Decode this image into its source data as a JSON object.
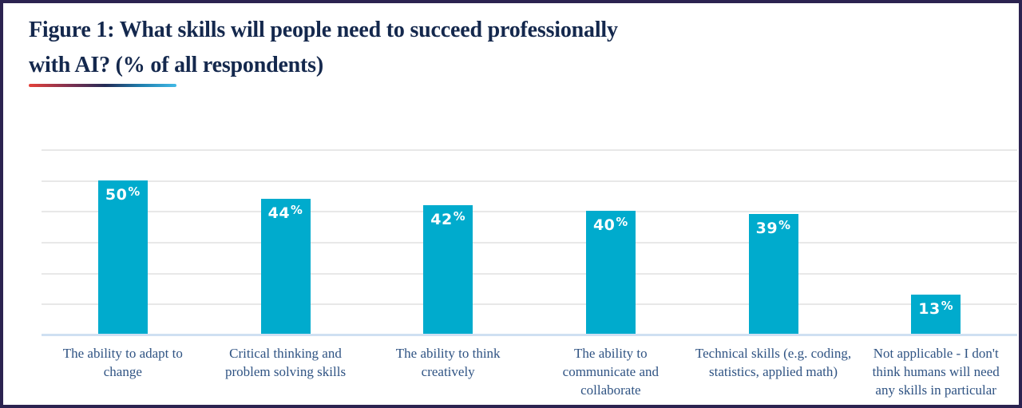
{
  "figure": {
    "title_line1": "Figure 1: What skills will people need to succeed professionally",
    "title_line2": "with AI? (% of all respondents)"
  },
  "chart_data": {
    "type": "bar",
    "title": "Figure 1: What skills will people need to succeed professionally with AI? (% of all respondents)",
    "categories": [
      "The ability to adapt to change",
      "Critical thinking and problem solving skills",
      "The ability to think creatively",
      "The ability to communicate and collaborate",
      "Technical skills (e.g. coding, statistics, applied math)",
      "Not applicable - I don't think humans will need any skills in particular"
    ],
    "values": [
      50,
      44,
      42,
      40,
      39,
      13
    ],
    "value_labels": [
      "50%",
      "44%",
      "42%",
      "40%",
      "39%",
      "13%"
    ],
    "xlabel": "",
    "ylabel": "",
    "ylim": [
      0,
      60
    ],
    "gridline_step": 10,
    "grid": true,
    "legend": false,
    "colors": {
      "bar": "#00abcd",
      "gridline": "#e8e8e8",
      "axis_line": "#cfe0f2",
      "value_label": "#ffffff",
      "category_label": "#2f5383",
      "title": "#14284d",
      "frame_border": "#2b2350"
    }
  }
}
